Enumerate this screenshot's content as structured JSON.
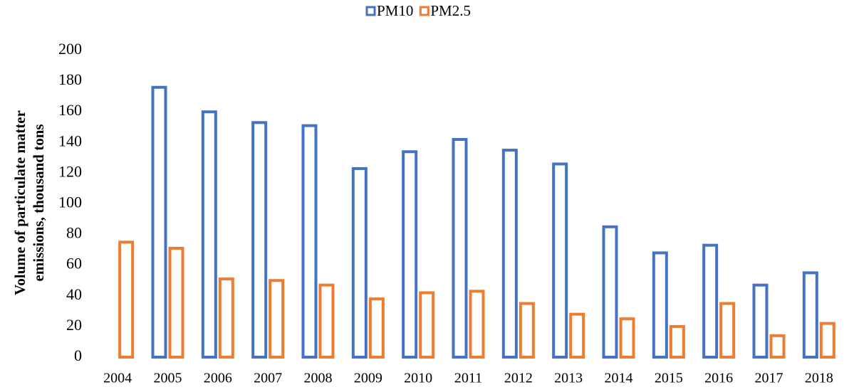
{
  "chart_data": {
    "type": "bar",
    "y_label": [
      "Volume of particulate matter",
      "emissions, thousand tons"
    ],
    "categories": [
      "2004",
      "2005",
      "2006",
      "2007",
      "2008",
      "2009",
      "2010",
      "2011",
      "2012",
      "2013",
      "2014",
      "2015",
      "2016",
      "2017",
      "2018"
    ],
    "series": [
      {
        "name": "PM10",
        "color": "#4472c4",
        "values": [
          null,
          176,
          160,
          153,
          151,
          123,
          134,
          142,
          135,
          126,
          85,
          68,
          73,
          47,
          55
        ]
      },
      {
        "name": "PM2.5",
        "color": "#ed7d31",
        "values": [
          75,
          71,
          51,
          50,
          47,
          38,
          42,
          43,
          35,
          28,
          25,
          20,
          35,
          14,
          22
        ]
      }
    ],
    "ylim": [
      0,
      200
    ],
    "yticks": [
      0,
      20,
      40,
      60,
      80,
      100,
      120,
      140,
      160,
      180,
      200
    ],
    "grid": false,
    "legend": "top"
  }
}
